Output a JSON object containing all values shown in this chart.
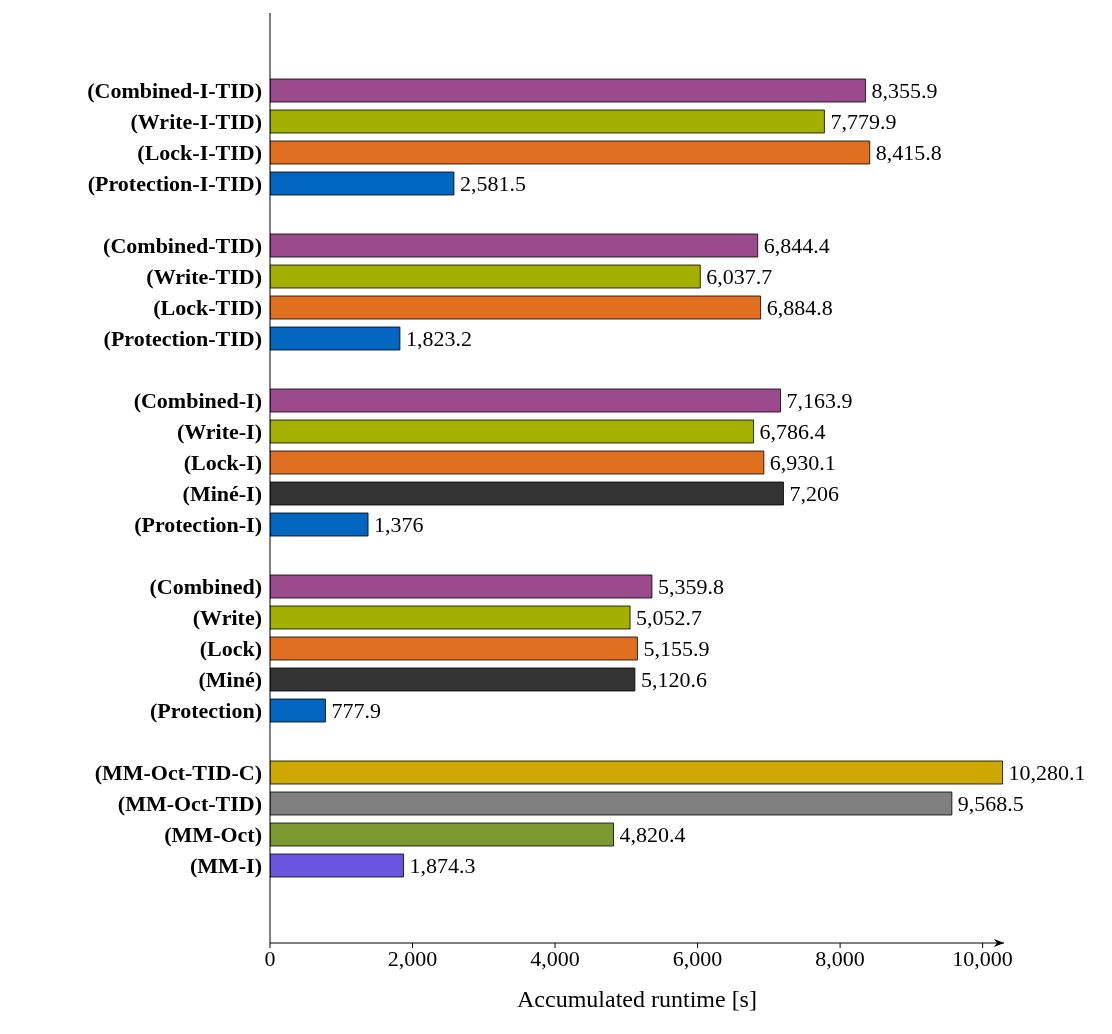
{
  "chart_data": {
    "type": "bar",
    "orientation": "horizontal",
    "xlabel": "Accumulated runtime [s]",
    "categories": [
      null,
      null,
      "(Combined-I-TID)",
      "(Write-I-TID)",
      "(Lock-I-TID)",
      "(Protection-I-TID)",
      null,
      "(Combined-TID)",
      "(Write-TID)",
      "(Lock-TID)",
      "(Protection-TID)",
      null,
      "(Combined-I)",
      "(Write-I)",
      "(Lock-I)",
      "(Miné-I)",
      "(Protection-I)",
      null,
      "(Combined)",
      "(Write)",
      "(Lock)",
      "(Miné)",
      "(Protection)",
      null,
      "(MM-Oct-TID-C)",
      "(MM-Oct-TID)",
      "(MM-Oct)",
      "(MM-I)",
      null,
      null
    ],
    "values": [
      null,
      null,
      8355.9,
      7779.9,
      8415.8,
      2581.5,
      null,
      6844.4,
      6037.7,
      6884.8,
      1823.2,
      null,
      7163.9,
      6786.4,
      6930.1,
      7206,
      1376,
      null,
      5359.8,
      5052.7,
      5155.9,
      5120.6,
      777.9,
      null,
      10280.1,
      9568.5,
      4820.4,
      1874.3,
      null,
      null
    ],
    "value_labels": [
      null,
      null,
      "8,355.9",
      "7,779.9",
      "8,415.8",
      "2,581.5",
      null,
      "6,844.4",
      "6,037.7",
      "6,884.8",
      "1,823.2",
      null,
      "7,163.9",
      "6,786.4",
      "6,930.1",
      "7,206",
      "1,376",
      null,
      "5,359.8",
      "5,052.7",
      "5,155.9",
      "5,120.6",
      "777.9",
      null,
      "10,280.1",
      "9,568.5",
      "4,820.4",
      "1,874.3",
      null,
      null
    ],
    "colors": [
      null,
      null,
      "#9b4a8e",
      "#a3b000",
      "#e07020",
      "#0066c0",
      null,
      "#9b4a8e",
      "#a3b000",
      "#e07020",
      "#0066c0",
      null,
      "#9b4a8e",
      "#a3b000",
      "#e07020",
      "#333333",
      "#0066c0",
      null,
      "#9b4a8e",
      "#a3b000",
      "#e07020",
      "#333333",
      "#0066c0",
      null,
      "#cca800",
      "#808080",
      "#7a9a30",
      "#6a55e0",
      null,
      null
    ],
    "xlim": [
      0,
      10300
    ],
    "xticks": [
      {
        "value": 0,
        "label": "0"
      },
      {
        "value": 2000,
        "label": "2,000"
      },
      {
        "value": 4000,
        "label": "4,000"
      },
      {
        "value": 6000,
        "label": "6,000"
      },
      {
        "value": 8000,
        "label": "8,000"
      },
      {
        "value": 10000,
        "label": "10,000"
      }
    ],
    "grid": false,
    "legend": false
  }
}
